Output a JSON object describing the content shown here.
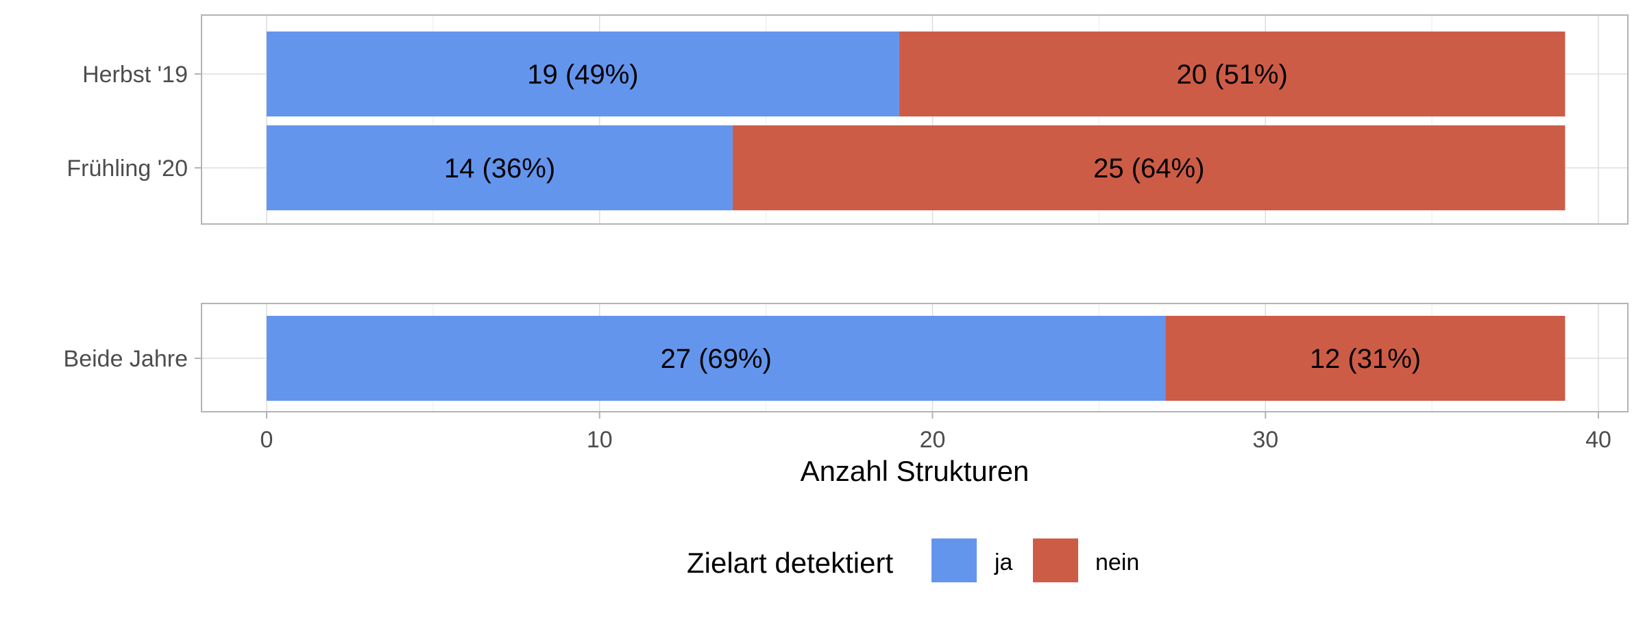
{
  "chart_data": {
    "type": "bar",
    "orientation": "horizontal",
    "stacked": true,
    "panels": [
      {
        "categories": [
          "Herbst '19",
          "Frühling '20"
        ],
        "series": [
          {
            "name": "ja",
            "values": [
              19,
              14
            ],
            "labels": [
              "19 (49%)",
              "14 (36%)"
            ]
          },
          {
            "name": "nein",
            "values": [
              20,
              25
            ],
            "labels": [
              "20 (51%)",
              "25 (64%)"
            ]
          }
        ]
      },
      {
        "categories": [
          "Beide Jahre"
        ],
        "series": [
          {
            "name": "ja",
            "values": [
              27
            ],
            "labels": [
              "27 (69%)"
            ]
          },
          {
            "name": "nein",
            "values": [
              12
            ],
            "labels": [
              "12 (31%)"
            ]
          }
        ]
      }
    ],
    "xlabel": "Anzahl Strukturen",
    "xlim": [
      0,
      40
    ],
    "xticks": [
      0,
      10,
      20,
      30,
      40
    ],
    "grid": true,
    "legend": {
      "title": "Zielart detektiert",
      "position": "bottom",
      "entries": [
        {
          "label": "ja",
          "color": "#6495ED"
        },
        {
          "label": "nein",
          "color": "#CD5C47"
        }
      ]
    }
  }
}
